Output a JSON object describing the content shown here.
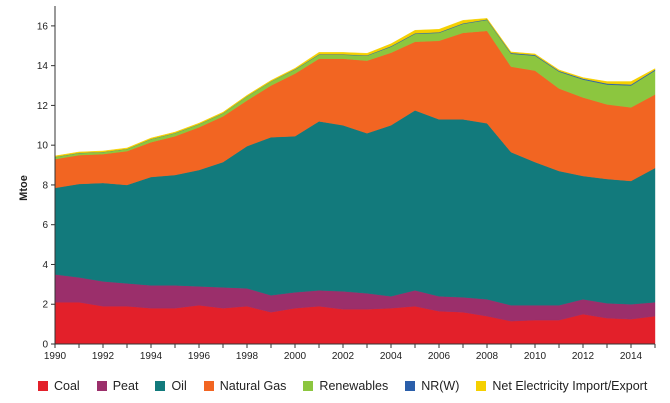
{
  "chart_data": {
    "type": "area",
    "stacked": true,
    "title": "",
    "xlabel": "",
    "ylabel": "Mtoe",
    "xlim": [
      1990,
      2015
    ],
    "ylim": [
      0,
      17
    ],
    "yticks": [
      0,
      2,
      4,
      6,
      8,
      10,
      12,
      14,
      16
    ],
    "xticks": [
      1990,
      1992,
      1994,
      1996,
      1998,
      2000,
      2002,
      2004,
      2006,
      2008,
      2010,
      2012,
      2014
    ],
    "grid": false,
    "legend_position": "bottom",
    "x": [
      1990,
      1991,
      1992,
      1993,
      1994,
      1995,
      1996,
      1997,
      1998,
      1999,
      2000,
      2001,
      2002,
      2003,
      2004,
      2005,
      2006,
      2007,
      2008,
      2009,
      2010,
      2011,
      2012,
      2013,
      2014,
      2015
    ],
    "series": [
      {
        "name": "Coal",
        "color": "#e3202a",
        "values": [
          2.1,
          2.1,
          1.9,
          1.9,
          1.8,
          1.8,
          1.95,
          1.8,
          1.9,
          1.6,
          1.8,
          1.9,
          1.75,
          1.75,
          1.8,
          1.9,
          1.65,
          1.6,
          1.4,
          1.15,
          1.2,
          1.2,
          1.5,
          1.3,
          1.25,
          1.4
        ]
      },
      {
        "name": "Peat",
        "color": "#9b2f6b",
        "values": [
          1.4,
          1.25,
          1.25,
          1.15,
          1.15,
          1.15,
          0.95,
          1.05,
          0.9,
          0.85,
          0.8,
          0.8,
          0.9,
          0.8,
          0.6,
          0.8,
          0.75,
          0.75,
          0.85,
          0.8,
          0.75,
          0.75,
          0.75,
          0.75,
          0.75,
          0.7
        ]
      },
      {
        "name": "Oil",
        "color": "#127a7c",
        "values": [
          4.35,
          4.7,
          4.95,
          4.95,
          5.45,
          5.55,
          5.85,
          6.3,
          7.15,
          7.95,
          7.85,
          8.5,
          8.35,
          8.05,
          8.6,
          9.05,
          8.9,
          8.95,
          8.85,
          7.7,
          7.2,
          6.75,
          6.2,
          6.25,
          6.2,
          6.75
        ]
      },
      {
        "name": "Natural Gas",
        "color": "#f26522",
        "values": [
          1.45,
          1.45,
          1.45,
          1.7,
          1.75,
          1.95,
          2.15,
          2.3,
          2.3,
          2.6,
          3.15,
          3.15,
          3.35,
          3.65,
          3.65,
          3.45,
          3.95,
          4.35,
          4.65,
          4.3,
          4.6,
          4.15,
          3.95,
          3.75,
          3.7,
          3.7
        ]
      },
      {
        "name": "Renewables",
        "color": "#8cc63f",
        "values": [
          0.1,
          0.1,
          0.1,
          0.1,
          0.15,
          0.15,
          0.15,
          0.15,
          0.2,
          0.2,
          0.2,
          0.2,
          0.2,
          0.25,
          0.3,
          0.4,
          0.4,
          0.45,
          0.55,
          0.65,
          0.75,
          0.85,
          0.9,
          1.0,
          1.1,
          1.2
        ]
      },
      {
        "name": "NR(W)",
        "color": "#2b5faa",
        "values": [
          0.01,
          0.01,
          0.01,
          0.01,
          0.01,
          0.01,
          0.01,
          0.01,
          0.01,
          0.01,
          0.02,
          0.02,
          0.02,
          0.02,
          0.03,
          0.03,
          0.03,
          0.03,
          0.03,
          0.04,
          0.04,
          0.04,
          0.05,
          0.05,
          0.05,
          0.05
        ]
      },
      {
        "name": "Net Electricity Import/Export",
        "color": "#f5d000",
        "values": [
          0.05,
          0.05,
          0.05,
          0.05,
          0.05,
          0.05,
          0.05,
          0.05,
          0.05,
          0.05,
          0.05,
          0.1,
          0.1,
          0.1,
          0.12,
          0.15,
          0.15,
          0.15,
          0.05,
          0.05,
          0.05,
          0.05,
          0.05,
          0.1,
          0.15,
          0.05
        ]
      }
    ]
  }
}
